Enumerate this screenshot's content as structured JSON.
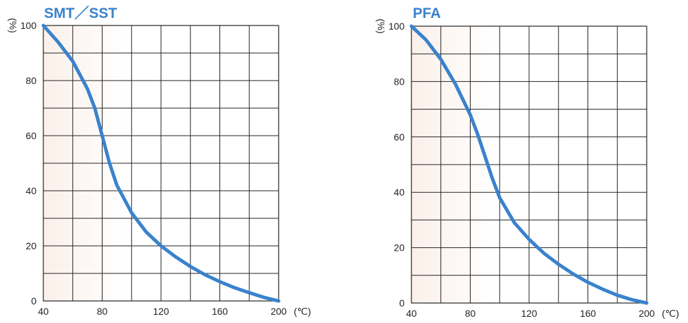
{
  "colors": {
    "curve": "#3a82cc",
    "title": "#3a82cc",
    "background_tint": "#fbf0ea",
    "grid": "#222222"
  },
  "chart_data": [
    {
      "type": "line",
      "title": "SMT／SST",
      "xlabel": "",
      "ylabel": "",
      "y_unit": "%",
      "x_unit": "(℃)",
      "xlim": [
        40,
        200
      ],
      "ylim": [
        0,
        100
      ],
      "x_ticks": [
        40,
        80,
        120,
        160,
        200
      ],
      "y_ticks": [
        0,
        20,
        40,
        60,
        80,
        100
      ],
      "x_grid_step": 20,
      "y_grid_step": 10,
      "grid": true,
      "series": [
        {
          "x": [
            40,
            50,
            60,
            70,
            75,
            80,
            85,
            90,
            100,
            110,
            120,
            130,
            140,
            150,
            160,
            170,
            180,
            190,
            200
          ],
          "y": [
            100,
            94,
            87,
            77,
            70,
            60,
            50,
            42,
            32,
            25,
            20,
            16,
            12.5,
            9.5,
            7,
            4.8,
            3,
            1.3,
            0
          ]
        }
      ]
    },
    {
      "type": "line",
      "title": "PFA",
      "xlabel": "",
      "ylabel": "",
      "y_unit": "%",
      "x_unit": "(℃)",
      "xlim": [
        40,
        200
      ],
      "ylim": [
        0,
        100
      ],
      "x_ticks": [
        40,
        80,
        120,
        160,
        200
      ],
      "y_ticks": [
        0,
        20,
        40,
        60,
        80,
        100
      ],
      "x_grid_step": 20,
      "y_grid_step": 10,
      "grid": true,
      "series": [
        {
          "x": [
            40,
            50,
            60,
            70,
            80,
            85,
            90,
            95,
            100,
            110,
            120,
            130,
            140,
            150,
            160,
            170,
            180,
            190,
            200
          ],
          "y": [
            100,
            95,
            88,
            79,
            68,
            61,
            53,
            45,
            38,
            29,
            23,
            18,
            14,
            10.5,
            7.5,
            5,
            2.8,
            1.2,
            0
          ]
        }
      ]
    }
  ]
}
